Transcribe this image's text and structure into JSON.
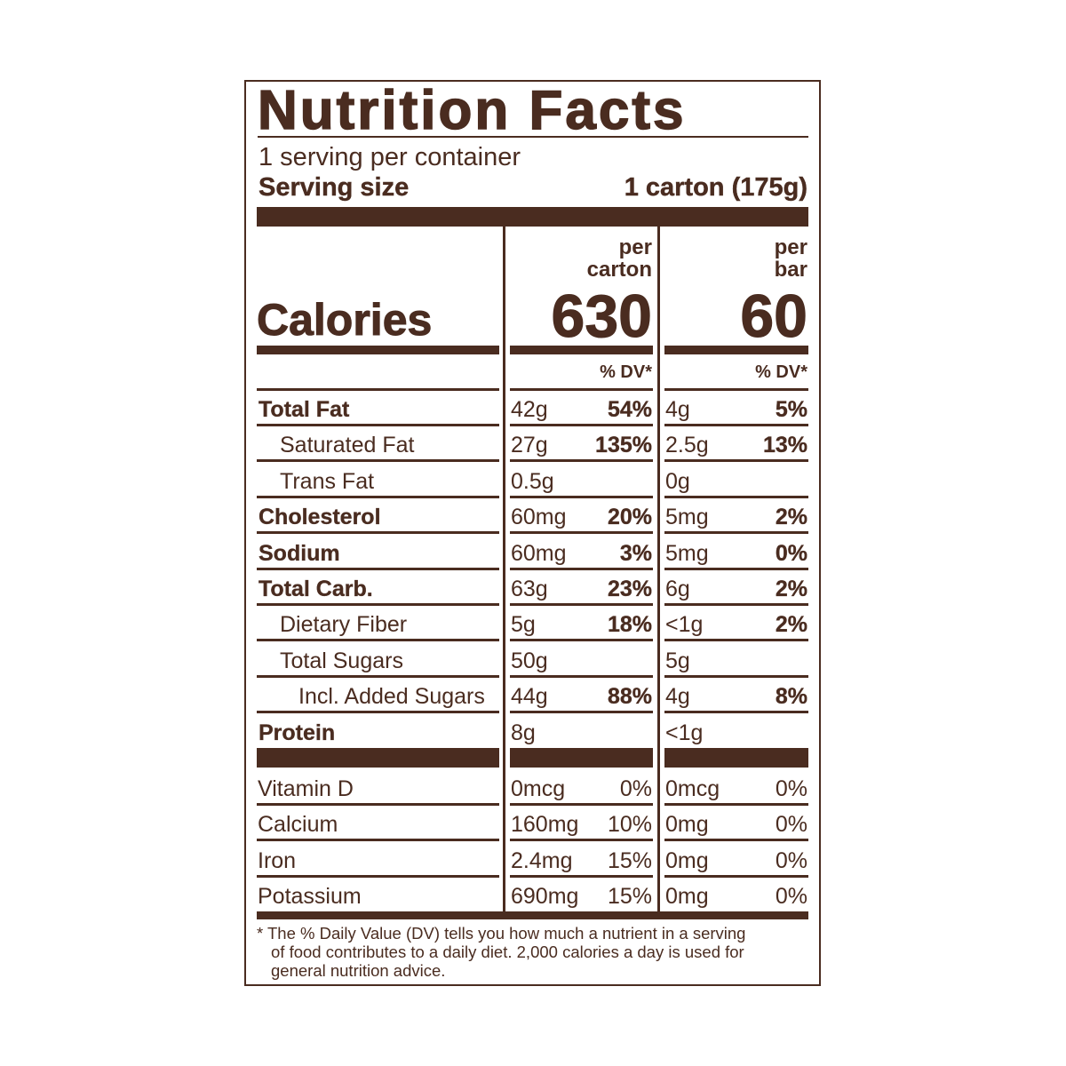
{
  "title": "Nutrition Facts",
  "servings_per_container": "1 serving per container",
  "serving_size_label": "Serving size",
  "serving_size_value": "1 carton (175g)",
  "calories_label": "Calories",
  "columns": [
    {
      "header_line1": "per",
      "header_line2": "carton",
      "calories": "630",
      "dv_header": "% DV*"
    },
    {
      "header_line1": "per",
      "header_line2": "bar",
      "calories": "60",
      "dv_header": "% DV*"
    }
  ],
  "nutrients": [
    {
      "label": "Total Fat",
      "bold": true,
      "indent": 0,
      "carton_amount": "42g",
      "carton_dv": "54%",
      "bar_amount": "4g",
      "bar_dv": "5%"
    },
    {
      "label": "Saturated Fat",
      "bold": false,
      "indent": 1,
      "carton_amount": "27g",
      "carton_dv": "135%",
      "bar_amount": "2.5g",
      "bar_dv": "13%"
    },
    {
      "label": "Trans Fat",
      "bold": false,
      "indent": 1,
      "carton_amount": "0.5g",
      "carton_dv": "",
      "bar_amount": "0g",
      "bar_dv": ""
    },
    {
      "label": "Cholesterol",
      "bold": true,
      "indent": 0,
      "carton_amount": "60mg",
      "carton_dv": "20%",
      "bar_amount": "5mg",
      "bar_dv": "2%"
    },
    {
      "label": "Sodium",
      "bold": true,
      "indent": 0,
      "carton_amount": "60mg",
      "carton_dv": "3%",
      "bar_amount": "5mg",
      "bar_dv": "0%"
    },
    {
      "label": "Total Carb.",
      "bold": true,
      "indent": 0,
      "carton_amount": "63g",
      "carton_dv": "23%",
      "bar_amount": "6g",
      "bar_dv": "2%"
    },
    {
      "label": "Dietary Fiber",
      "bold": false,
      "indent": 1,
      "carton_amount": "5g",
      "carton_dv": "18%",
      "bar_amount": "<1g",
      "bar_dv": "2%"
    },
    {
      "label": "Total Sugars",
      "bold": false,
      "indent": 1,
      "carton_amount": "50g",
      "carton_dv": "",
      "bar_amount": "5g",
      "bar_dv": ""
    },
    {
      "label": "Incl. Added Sugars",
      "bold": false,
      "indent": 2,
      "carton_amount": "44g",
      "carton_dv": "88%",
      "bar_amount": "4g",
      "bar_dv": "8%"
    },
    {
      "label": "Protein",
      "bold": true,
      "indent": 0,
      "carton_amount": "8g",
      "carton_dv": "",
      "bar_amount": "<1g",
      "bar_dv": ""
    }
  ],
  "vitamins": [
    {
      "label": "Vitamin D",
      "carton_amount": "0mcg",
      "carton_dv": "0%",
      "bar_amount": "0mcg",
      "bar_dv": "0%"
    },
    {
      "label": "Calcium",
      "carton_amount": "160mg",
      "carton_dv": "10%",
      "bar_amount": "0mg",
      "bar_dv": "0%"
    },
    {
      "label": "Iron",
      "carton_amount": "2.4mg",
      "carton_dv": "15%",
      "bar_amount": "0mg",
      "bar_dv": "0%"
    },
    {
      "label": "Potassium",
      "carton_amount": "690mg",
      "carton_dv": "15%",
      "bar_amount": "0mg",
      "bar_dv": "0%"
    }
  ],
  "footnote_lines": [
    "* The % Daily Value (DV) tells you how much a nutrient in a serving",
    "of food contributes to a daily diet. 2,000 calories a day is used for",
    "general nutrition advice."
  ],
  "colors": {
    "ink": "#4a2c20",
    "background": "#ffffff"
  }
}
